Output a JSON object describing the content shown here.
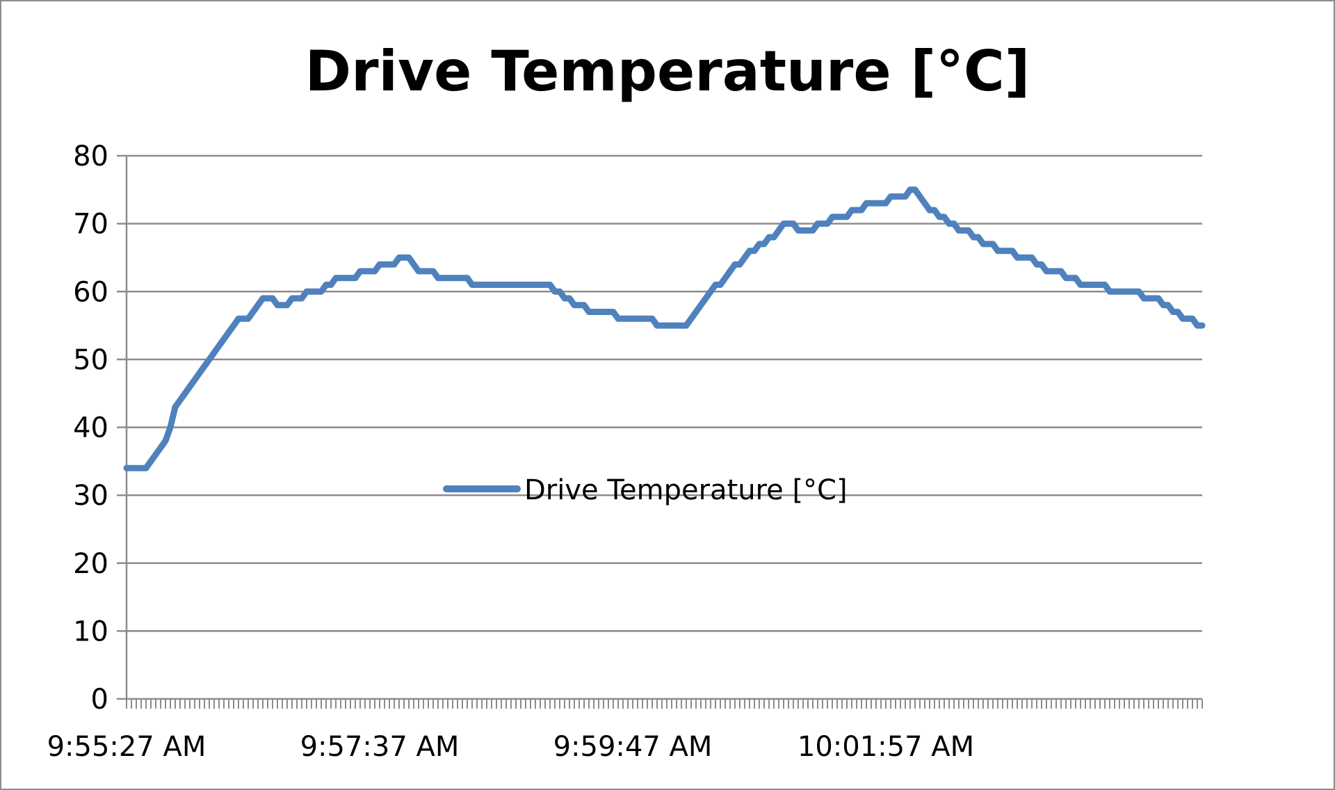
{
  "chart_data": {
    "type": "line",
    "title": "Drive Temperature [°C]",
    "xlabel": "",
    "ylabel": "",
    "ylim": [
      0,
      80
    ],
    "yticks": [
      0,
      10,
      20,
      30,
      40,
      50,
      60,
      70,
      80
    ],
    "x_tick_labels": [
      "9:55:27 AM",
      "9:57:37 AM",
      "9:59:47 AM",
      "10:01:57 AM"
    ],
    "grid": true,
    "legend": {
      "position": "center",
      "entries": [
        "Drive Temperature [°C]"
      ]
    },
    "series": [
      {
        "name": "Drive Temperature [°C]",
        "color": "#4f81bd",
        "values": [
          34,
          34,
          34,
          34,
          34,
          35,
          36,
          37,
          38,
          40,
          43,
          44,
          45,
          46,
          47,
          48,
          49,
          50,
          51,
          52,
          53,
          54,
          55,
          56,
          56,
          56,
          57,
          58,
          59,
          59,
          59,
          58,
          58,
          58,
          59,
          59,
          59,
          60,
          60,
          60,
          60,
          61,
          61,
          62,
          62,
          62,
          62,
          62,
          63,
          63,
          63,
          63,
          64,
          64,
          64,
          64,
          65,
          65,
          65,
          64,
          63,
          63,
          63,
          63,
          62,
          62,
          62,
          62,
          62,
          62,
          62,
          61,
          61,
          61,
          61,
          61,
          61,
          61,
          61,
          61,
          61,
          61,
          61,
          61,
          61,
          61,
          61,
          61,
          60,
          60,
          59,
          59,
          58,
          58,
          58,
          57,
          57,
          57,
          57,
          57,
          57,
          56,
          56,
          56,
          56,
          56,
          56,
          56,
          56,
          55,
          55,
          55,
          55,
          55,
          55,
          55,
          56,
          57,
          58,
          59,
          60,
          61,
          61,
          62,
          63,
          64,
          64,
          65,
          66,
          66,
          67,
          67,
          68,
          68,
          69,
          70,
          70,
          70,
          69,
          69,
          69,
          69,
          70,
          70,
          70,
          71,
          71,
          71,
          71,
          72,
          72,
          72,
          73,
          73,
          73,
          73,
          73,
          74,
          74,
          74,
          74,
          75,
          75,
          74,
          73,
          72,
          72,
          71,
          71,
          70,
          70,
          69,
          69,
          69,
          68,
          68,
          67,
          67,
          67,
          66,
          66,
          66,
          66,
          65,
          65,
          65,
          65,
          64,
          64,
          63,
          63,
          63,
          63,
          62,
          62,
          62,
          61,
          61,
          61,
          61,
          61,
          61,
          60,
          60,
          60,
          60,
          60,
          60,
          60,
          59,
          59,
          59,
          59,
          58,
          58,
          57,
          57,
          56,
          56,
          56,
          55,
          55
        ]
      }
    ]
  }
}
